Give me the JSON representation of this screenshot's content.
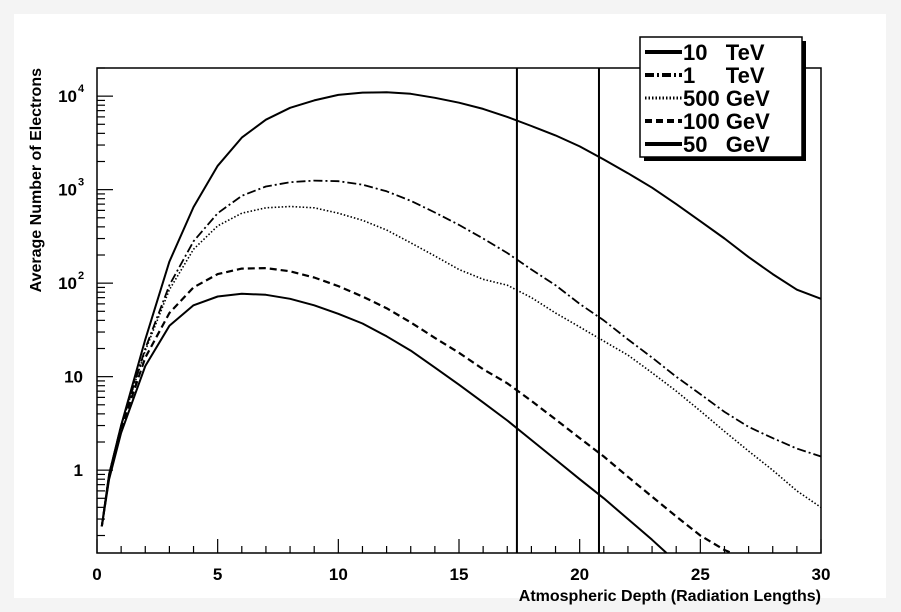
{
  "chart_data": {
    "type": "line",
    "title": "",
    "xlabel": "Atmospheric Depth (Radiation Lengths)",
    "ylabel": "Average Number of Electrons",
    "xlim": [
      0,
      30
    ],
    "ylim": [
      0.13,
      20000
    ],
    "yscale": "log",
    "grid": false,
    "legend_position": "top-right",
    "x_ticks": [
      "0",
      "5",
      "10",
      "15",
      "20",
      "25",
      "30"
    ],
    "x_tick_values": [
      0,
      5,
      10,
      15,
      20,
      25,
      30
    ],
    "y_ticks": [
      {
        "value": 1,
        "base": "1",
        "exp": ""
      },
      {
        "value": 10,
        "base": "10",
        "exp": ""
      },
      {
        "value": 100,
        "base": "10",
        "exp": "2"
      },
      {
        "value": 1000,
        "base": "10",
        "exp": "3"
      },
      {
        "value": 10000,
        "base": "10",
        "exp": "4"
      }
    ],
    "vertical_lines": [
      17.4,
      20.8
    ],
    "series": [
      {
        "name": "10   TeV",
        "style": "solid",
        "x": [
          0.2,
          0.5,
          1,
          2,
          3,
          4,
          5,
          6,
          7,
          8,
          9,
          10,
          11,
          12,
          13,
          14,
          15,
          16,
          17,
          18,
          19,
          20,
          21,
          22,
          23,
          24,
          25,
          26,
          27,
          28,
          29,
          30
        ],
        "y": [
          0.25,
          0.9,
          3,
          25,
          170,
          650,
          1800,
          3600,
          5600,
          7500,
          9000,
          10300,
          10900,
          11000,
          10600,
          9600,
          8500,
          7300,
          6000,
          4800,
          3800,
          2900,
          2100,
          1500,
          1050,
          700,
          460,
          300,
          190,
          125,
          85,
          68
        ]
      },
      {
        "name": "1     TeV",
        "style": "dashdot",
        "x": [
          0.2,
          0.5,
          1,
          2,
          3,
          4,
          5,
          6,
          7,
          8,
          9,
          10,
          11,
          12,
          13,
          14,
          15,
          16,
          17,
          18,
          19,
          20,
          21,
          22,
          23,
          24,
          25,
          26,
          27,
          28,
          29,
          30
        ],
        "y": [
          0.25,
          0.9,
          3,
          20,
          95,
          280,
          560,
          860,
          1080,
          1200,
          1250,
          1230,
          1130,
          960,
          760,
          570,
          420,
          300,
          210,
          140,
          95,
          60,
          40,
          25,
          16,
          10,
          6.5,
          4.2,
          2.9,
          2.2,
          1.7,
          1.4
        ]
      },
      {
        "name": "500 GeV",
        "style": "dotted",
        "x": [
          0.2,
          0.5,
          1,
          2,
          3,
          4,
          5,
          6,
          7,
          8,
          9,
          10,
          11,
          12,
          13,
          14,
          15,
          16,
          17,
          18,
          19,
          20,
          21,
          22,
          23,
          24,
          25,
          26,
          27,
          28,
          29,
          30
        ],
        "y": [
          0.25,
          0.9,
          3,
          19,
          85,
          230,
          410,
          560,
          640,
          660,
          640,
          560,
          470,
          370,
          270,
          195,
          140,
          110,
          95,
          70,
          48,
          34,
          24,
          17,
          11,
          7,
          4.3,
          2.6,
          1.6,
          1.0,
          0.6,
          0.4
        ]
      },
      {
        "name": "100 GeV",
        "style": "dashed",
        "x": [
          0.2,
          0.5,
          1,
          2,
          3,
          4,
          5,
          6,
          7,
          8,
          9,
          10,
          11,
          12,
          13,
          14,
          15,
          16,
          17,
          18,
          19,
          20,
          21,
          22,
          23,
          24,
          25,
          26,
          26.3
        ],
        "y": [
          0.25,
          0.85,
          2.8,
          16,
          48,
          90,
          125,
          143,
          145,
          134,
          115,
          93,
          72,
          54,
          38,
          26,
          18,
          12,
          8.5,
          5.5,
          3.5,
          2.2,
          1.4,
          0.85,
          0.52,
          0.32,
          0.2,
          0.14,
          0.13
        ]
      },
      {
        "name": "50   GeV",
        "style": "solid",
        "x": [
          0.2,
          0.5,
          1,
          2,
          3,
          4,
          5,
          6,
          7,
          8,
          9,
          10,
          11,
          12,
          13,
          14,
          15,
          16,
          17,
          18,
          19,
          20,
          21,
          22,
          23,
          23.6
        ],
        "y": [
          0.25,
          0.8,
          2.5,
          13,
          35,
          58,
          72,
          77,
          75,
          68,
          58,
          47,
          37,
          27,
          19,
          12.5,
          8.2,
          5.3,
          3.4,
          2.1,
          1.3,
          0.8,
          0.5,
          0.3,
          0.18,
          0.13
        ]
      }
    ]
  }
}
